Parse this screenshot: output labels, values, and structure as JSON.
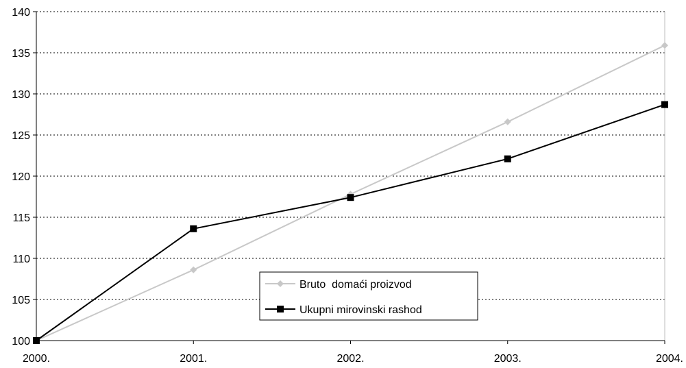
{
  "chart_data": {
    "type": "line",
    "title": "",
    "xlabel": "",
    "ylabel": "",
    "categories": [
      "2000.",
      "2001.",
      "2002.",
      "2003.",
      "2004."
    ],
    "ylim": [
      100,
      140
    ],
    "yticks": [
      100,
      105,
      110,
      115,
      120,
      125,
      130,
      135,
      140
    ],
    "grid": "horizontal-dotted",
    "legend_position": "center-bottom",
    "series": [
      {
        "name": "Bruto  domaći proizvod",
        "values": [
          100,
          108.6,
          117.8,
          126.6,
          135.9
        ],
        "color": "#c8c8c8",
        "marker": "diamond"
      },
      {
        "name": "Ukupni mirovinski rashod",
        "values": [
          100,
          113.6,
          117.4,
          122.1,
          128.7
        ],
        "color": "#000000",
        "marker": "square"
      }
    ]
  }
}
